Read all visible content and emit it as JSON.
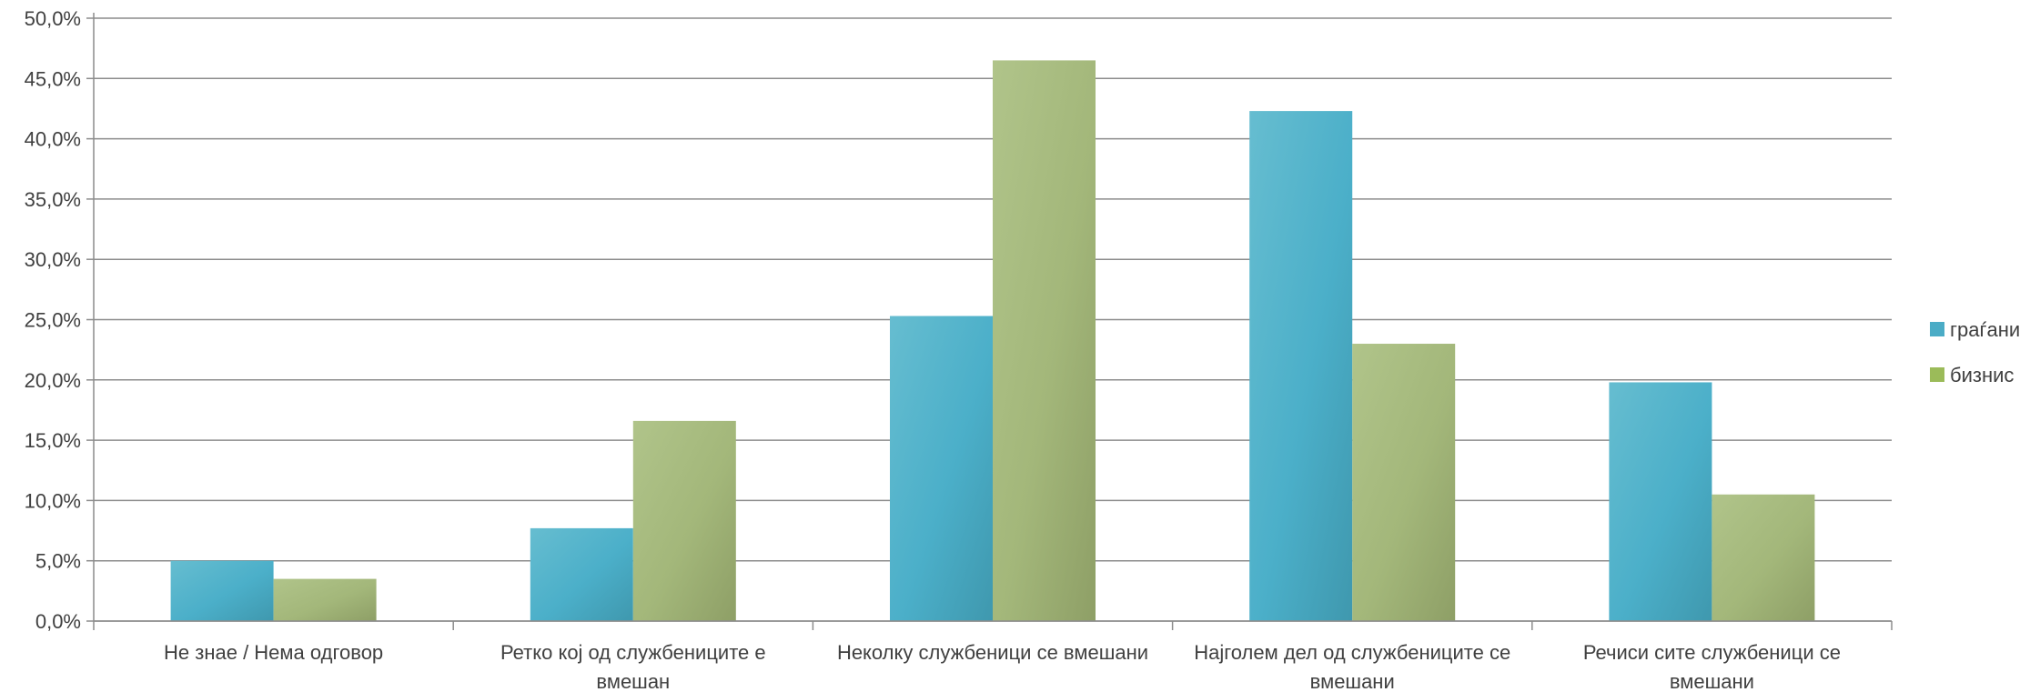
{
  "chart_data": {
    "type": "bar",
    "categories": [
      [
        "Не знае / Нема одговор"
      ],
      [
        "Ретко кој од службениците е",
        "вмешан"
      ],
      [
        "Неколку службеници се вмешани"
      ],
      [
        "Најголем дел од службениците се",
        "вмешани"
      ],
      [
        "Речиси сите службеници се",
        "вмешани"
      ]
    ],
    "series": [
      {
        "name": "граѓани",
        "values": [
          5.0,
          7.7,
          25.3,
          42.3,
          19.8
        ],
        "color": "#4BACC6"
      },
      {
        "name": "бизнис",
        "values": [
          3.5,
          16.6,
          46.5,
          23.0,
          10.5
        ],
        "color": "#9BBB59"
      }
    ],
    "ylim": [
      0,
      50
    ],
    "ytick_step": 5,
    "ytick_labels": [
      "0,0%",
      "5,0%",
      "10,0%",
      "15,0%",
      "20,0%",
      "25,0%",
      "30,0%",
      "35,0%",
      "40,0%",
      "45,0%",
      "50,0%"
    ],
    "grid": true,
    "legend_position": "right",
    "title": "",
    "xlabel": "",
    "ylabel": ""
  }
}
